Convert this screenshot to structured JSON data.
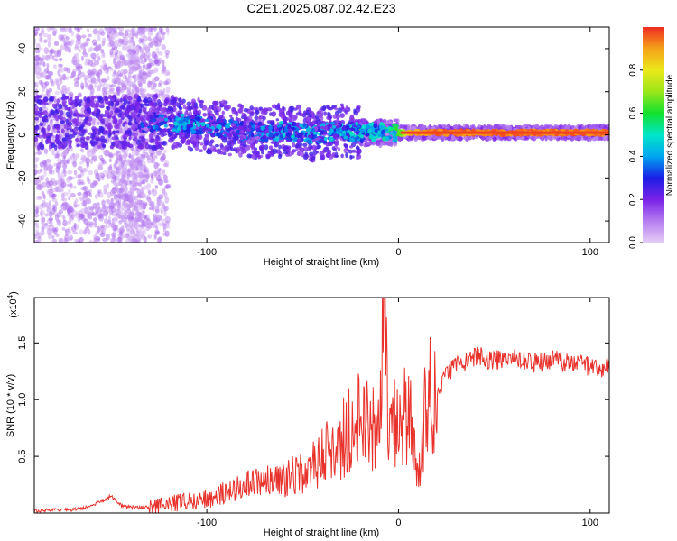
{
  "colors": {
    "background": "#ffffff",
    "axis": "#000000",
    "snr_line": "#e8322b",
    "colorbar_stops": [
      "#e5cdf6",
      "#b57cf0",
      "#7a22e8",
      "#1b1ee6",
      "#00a7f0",
      "#00e6c8",
      "#12e12e",
      "#9ae61a",
      "#ece81a",
      "#f5a218",
      "#ef2a23"
    ]
  },
  "chart_data": [
    {
      "id": "spectrogram",
      "type": "heatmap",
      "title": "C2E1.2025.087.02.42.E23",
      "xlabel": "Height of straight line (km)",
      "ylabel": "Frequency (Hz)",
      "xlim": [
        -190,
        110
      ],
      "ylim": [
        -50,
        50
      ],
      "xticks": [
        -100,
        0,
        100
      ],
      "yticks": [
        -40,
        -20,
        0,
        20,
        40
      ],
      "xtick_labels": [
        "-100",
        "0",
        "100"
      ],
      "ytick_labels": [
        "-40",
        "-20",
        "0",
        "20",
        "40"
      ],
      "colorbar": {
        "label": "Normalized spectral amplitude",
        "range": [
          0,
          1
        ],
        "ticks": [
          0.0,
          0.2,
          0.4,
          0.6,
          0.8
        ],
        "tick_labels": [
          "0.0",
          "0.2",
          "0.4",
          "0.6",
          "0.8"
        ]
      },
      "center_frequency_track": {
        "x": [
          -130,
          -110,
          -90,
          -75,
          -60,
          -45,
          -30,
          -20,
          -10,
          0,
          5,
          20,
          40,
          60,
          80,
          100,
          110
        ],
        "freq": [
          6,
          5,
          3,
          1,
          2,
          0,
          2,
          1,
          1,
          1,
          1,
          1,
          1,
          1,
          1,
          1,
          1
        ],
        "amplitude": [
          0.4,
          0.5,
          0.45,
          0.4,
          0.5,
          0.45,
          0.5,
          0.55,
          0.6,
          0.65,
          0.9,
          0.98,
          0.98,
          0.98,
          0.98,
          0.98,
          0.98
        ]
      }
    },
    {
      "id": "snr",
      "type": "line",
      "title": "",
      "xlabel": "Height of straight line (km)",
      "ylabel": "SNR (10 * v/v)",
      "scale_label_base": "(x10",
      "scale_label_exp": "4",
      "scale_label_close": ")",
      "xlim": [
        -190,
        110
      ],
      "ylim": [
        0,
        1.9
      ],
      "xticks": [
        -100,
        0,
        100
      ],
      "yticks": [
        0.5,
        1.0,
        1.5
      ],
      "xtick_labels": [
        "-100",
        "0",
        "100"
      ],
      "ytick_labels": [
        "0.5",
        "1.0",
        "1.5"
      ],
      "series": [
        {
          "name": "SNR",
          "x": [
            -190,
            -170,
            -160,
            -150,
            -145,
            -140,
            -130,
            -120,
            -110,
            -100,
            -90,
            -80,
            -70,
            -60,
            -50,
            -40,
            -35,
            -30,
            -25,
            -20,
            -15,
            -10,
            -8,
            -5,
            0,
            5,
            10,
            15,
            20,
            30,
            40,
            50,
            60,
            70,
            80,
            90,
            100,
            110
          ],
          "y": [
            0.02,
            0.03,
            0.06,
            0.15,
            0.07,
            0.05,
            0.05,
            0.08,
            0.1,
            0.13,
            0.18,
            0.25,
            0.28,
            0.3,
            0.38,
            0.5,
            0.6,
            0.62,
            0.8,
            0.85,
            0.8,
            0.7,
            1.85,
            0.7,
            0.85,
            0.95,
            0.35,
            1.0,
            1.1,
            1.3,
            1.38,
            1.35,
            1.38,
            1.32,
            1.35,
            1.32,
            1.3,
            1.28
          ]
        }
      ]
    }
  ]
}
